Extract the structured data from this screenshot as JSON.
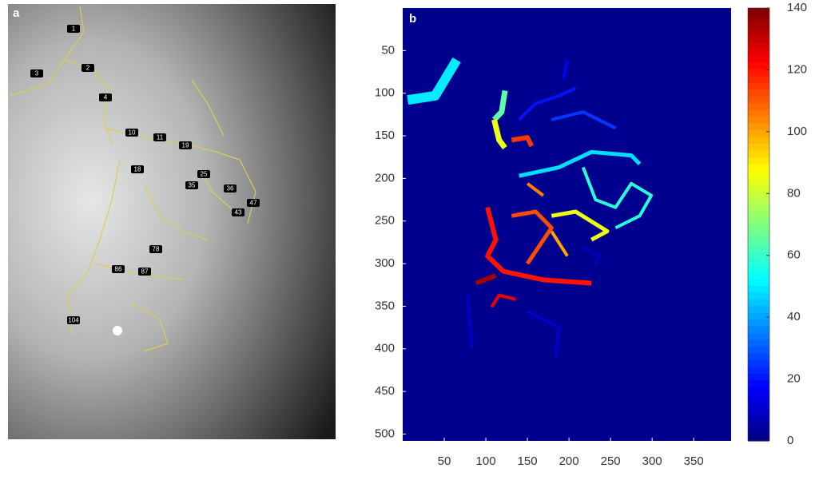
{
  "panel_a": {
    "label": "a",
    "node_labels": [
      "1",
      "2",
      "3",
      "4",
      "10",
      "11",
      "18",
      "19",
      "25",
      "35",
      "36",
      "43",
      "47",
      "78",
      "86",
      "87",
      "104"
    ]
  },
  "chart_data": {
    "type": "traces",
    "label": "b",
    "xlim": [
      0,
      395
    ],
    "ylim": [
      0,
      508
    ],
    "y_reversed": true,
    "xticks": [
      50,
      100,
      150,
      200,
      250,
      300,
      350
    ],
    "yticks": [
      50,
      100,
      150,
      200,
      250,
      300,
      350,
      400,
      450,
      500
    ],
    "background": "#00008f",
    "colorbar": {
      "lim": [
        0,
        140
      ],
      "ticks": [
        0,
        20,
        40,
        60,
        80,
        100,
        120,
        140
      ],
      "colormap": "jet"
    },
    "segments": [
      {
        "value": 50,
        "x": [
          6,
          39,
          65
        ],
        "y": [
          108,
          103,
          61
        ],
        "width": 12
      },
      {
        "value": 65,
        "x": [
          123,
          119,
          110
        ],
        "y": [
          97,
          122,
          131
        ],
        "width": 7
      },
      {
        "value": 85,
        "x": [
          110,
          116,
          123
        ],
        "y": [
          131,
          155,
          164
        ],
        "width": 7
      },
      {
        "value": 115,
        "x": [
          131,
          150,
          155
        ],
        "y": [
          155,
          152,
          162
        ],
        "width": 6
      },
      {
        "value": 20,
        "x": [
          140,
          160,
          188,
          208
        ],
        "y": [
          131,
          112,
          103,
          94
        ],
        "width": 4
      },
      {
        "value": 15,
        "x": [
          198,
          193
        ],
        "y": [
          61,
          84
        ],
        "width": 4
      },
      {
        "value": 25,
        "x": [
          179,
          217,
          256
        ],
        "y": [
          131,
          122,
          141
        ],
        "width": 4
      },
      {
        "value": 48,
        "x": [
          140,
          188,
          227,
          275,
          285
        ],
        "y": [
          197,
          187,
          169,
          173,
          183
        ],
        "width": 5
      },
      {
        "value": 58,
        "x": [
          217,
          232,
          256,
          275,
          299,
          285,
          256
        ],
        "y": [
          187,
          225,
          234,
          206,
          220,
          244,
          258
        ],
        "width": 4
      },
      {
        "value": 85,
        "x": [
          179,
          208,
          246,
          227
        ],
        "y": [
          244,
          239,
          262,
          272
        ],
        "width": 5
      },
      {
        "value": 100,
        "x": [
          179,
          198
        ],
        "y": [
          262,
          291
        ],
        "width": 4
      },
      {
        "value": 120,
        "x": [
          102,
          112,
          102,
          121,
          169,
          227
        ],
        "y": [
          234,
          272,
          291,
          309,
          319,
          323
        ],
        "width": 6
      },
      {
        "value": 112,
        "x": [
          131,
          160,
          179,
          150
        ],
        "y": [
          244,
          239,
          258,
          300
        ],
        "width": 5
      },
      {
        "value": 105,
        "x": [
          150,
          169
        ],
        "y": [
          206,
          220
        ],
        "width": 4
      },
      {
        "value": 135,
        "x": [
          88,
          112
        ],
        "y": [
          323,
          314
        ],
        "width": 6
      },
      {
        "value": 125,
        "x": [
          107,
          116,
          136
        ],
        "y": [
          351,
          337,
          342
        ],
        "width": 4
      },
      {
        "value": 10,
        "x": [
          78,
          83
        ],
        "y": [
          337,
          398
        ],
        "width": 4
      },
      {
        "value": 10,
        "x": [
          150,
          188,
          184
        ],
        "y": [
          356,
          375,
          408
        ],
        "width": 4
      },
      {
        "value": 8,
        "x": [
          217,
          237,
          232
        ],
        "y": [
          281,
          291,
          300
        ],
        "width": 4
      }
    ]
  }
}
